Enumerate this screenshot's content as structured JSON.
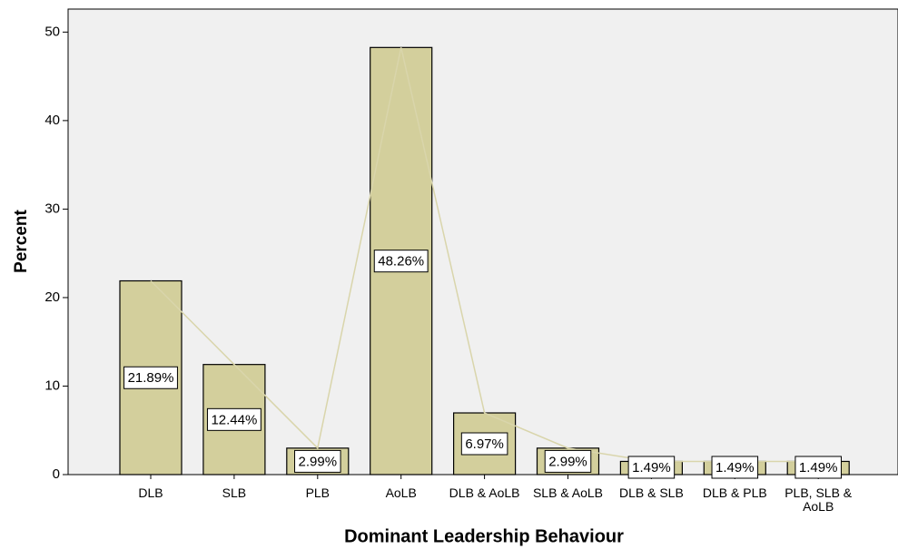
{
  "chart_data": {
    "type": "bar",
    "x_label": "Dominant Leadership Behaviour",
    "y_label": "Percent",
    "categories": [
      "DLB",
      "SLB",
      "PLB",
      "AoLB",
      "DLB & AoLB",
      "SLB & AoLB",
      "DLB & SLB",
      "DLB & PLB",
      "PLB, SLB & AoLB"
    ],
    "values": [
      21.89,
      12.44,
      2.99,
      48.26,
      6.97,
      2.99,
      1.49,
      1.49,
      1.49
    ],
    "value_labels": [
      "21.89%",
      "12.44%",
      "2.99%",
      "48.26%",
      "6.97%",
      "2.99%",
      "1.49%",
      "1.49%",
      "1.49%"
    ],
    "color": "#d3cf9c",
    "line_color": "#d9d5ab",
    "ylim": [
      0,
      52.6
    ],
    "yticks": [
      0,
      10,
      20,
      30,
      40,
      50
    ]
  }
}
